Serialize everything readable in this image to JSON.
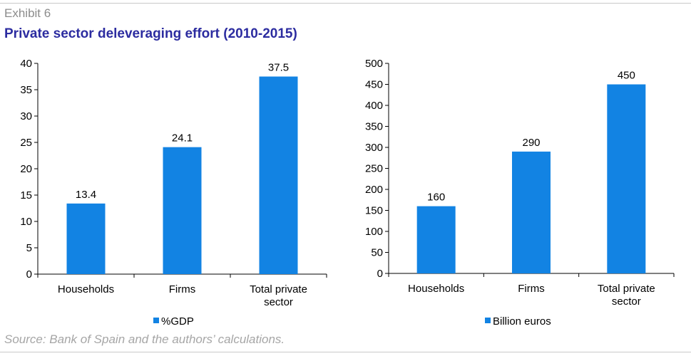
{
  "header": {
    "exhibit": "Exhibit 6",
    "title": "Private sector deleveraging effort (2010-2015)"
  },
  "source": "Source: Bank of Spain and the authors’ calculations.",
  "colors": {
    "bar": "#1283e3",
    "axis": "#000000"
  },
  "chart_data": [
    {
      "type": "bar",
      "categories": [
        [
          "Households"
        ],
        [
          "Firms"
        ],
        [
          "Total private",
          "sector"
        ]
      ],
      "series": [
        {
          "name": "%GDP",
          "values": [
            13.4,
            24.1,
            37.5
          ]
        }
      ],
      "data_labels": [
        "13.4",
        "24.1",
        "37.5"
      ],
      "ylim": [
        0,
        40
      ],
      "yticks": [
        0,
        5,
        10,
        15,
        20,
        25,
        30,
        35,
        40
      ],
      "legend": "bottom",
      "grid": false
    },
    {
      "type": "bar",
      "categories": [
        [
          "Households"
        ],
        [
          "Firms"
        ],
        [
          "Total private",
          "sector"
        ]
      ],
      "series": [
        {
          "name": "Billion euros",
          "values": [
            160,
            290,
            450
          ]
        }
      ],
      "data_labels": [
        "160",
        "290",
        "450"
      ],
      "ylim": [
        0,
        500
      ],
      "yticks": [
        0,
        50,
        100,
        150,
        200,
        250,
        300,
        350,
        400,
        450,
        500
      ],
      "legend": "bottom",
      "grid": false
    }
  ]
}
